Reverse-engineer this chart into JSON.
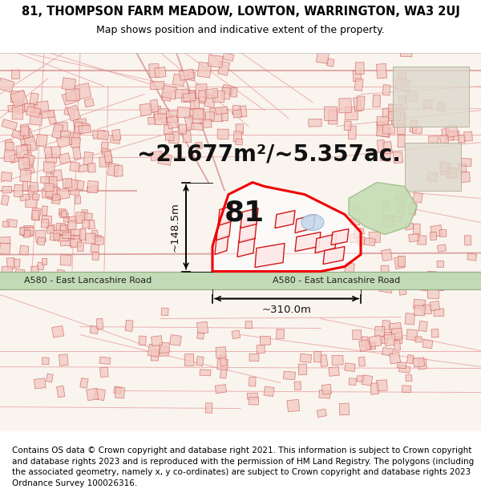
{
  "title_line1": "81, THOMPSON FARM MEADOW, LOWTON, WARRINGTON, WA3 2UJ",
  "title_line2": "Map shows position and indicative extent of the property.",
  "area_text": "~21677m²/~5.357ac.",
  "plot_number": "81",
  "dim_height": "~148.5m",
  "dim_width": "~310.0m",
  "road_label_left": "A580 - East Lancashire Road",
  "road_label_right": "A580 - East Lancashire Road",
  "footer_text": "Contains OS data © Crown copyright and database right 2021. This information is subject to Crown copyright and database rights 2023 and is reproduced with the permission of HM Land Registry. The polygons (including the associated geometry, namely x, y co-ordinates) are subject to Crown copyright and database rights 2023 Ordnance Survey 100026316.",
  "title_fontsize": 10.5,
  "subtitle_fontsize": 9,
  "area_fontsize": 20,
  "plot_num_fontsize": 26,
  "dim_fontsize": 9.5,
  "footer_fontsize": 7.5,
  "fig_width": 6.0,
  "fig_height": 6.25
}
